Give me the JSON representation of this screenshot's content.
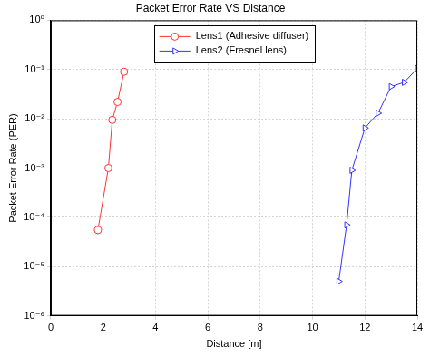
{
  "chart_data": {
    "type": "line",
    "title": "Packet Error Rate VS Distance",
    "x_label": "Distance [m]",
    "y_label": "Packet Error Rate (PER)",
    "log": "y",
    "grid": true,
    "legend": "upper center",
    "xlim": [
      0,
      14
    ],
    "xticks": [
      0,
      2,
      4,
      6,
      8,
      10,
      12,
      14
    ],
    "ylim": [
      1e-06,
      1
    ],
    "yticks": [
      {
        "value": 1e-06,
        "label": "10⁻⁶"
      },
      {
        "value": 1e-05,
        "label": "10⁻⁵"
      },
      {
        "value": 0.0001,
        "label": "10⁻⁴"
      },
      {
        "value": 0.001,
        "label": "10⁻³"
      },
      {
        "value": 0.01,
        "label": "10⁻²"
      },
      {
        "value": 0.1,
        "label": "10⁻¹"
      },
      {
        "value": 1,
        "label": "10⁰"
      }
    ],
    "series": [
      {
        "name": "Lens1 (Adhesive diffuser)",
        "color": "#ff3333",
        "marker": "circle",
        "line_style": "solid",
        "x": [
          1.8,
          2.2,
          2.35,
          2.55,
          2.8
        ],
        "values": [
          5.5e-05,
          0.001,
          0.0095,
          0.022,
          0.09
        ]
      },
      {
        "name": "Lens2 (Fresnel lens)",
        "color": "#3333ff",
        "marker": "triangle",
        "line_style": "solid",
        "x": [
          11.0,
          11.3,
          11.5,
          12.0,
          12.5,
          13.0,
          13.5,
          14.0
        ],
        "values": [
          5e-06,
          7e-05,
          0.0009,
          0.0065,
          0.013,
          0.045,
          0.055,
          0.105
        ]
      }
    ]
  }
}
